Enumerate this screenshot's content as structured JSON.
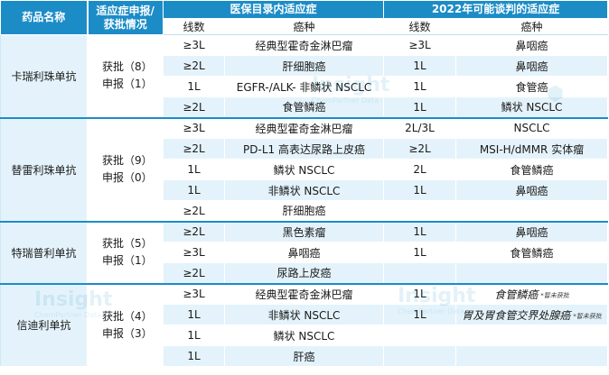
{
  "header": {
    "drug": "药品名称",
    "status": "适应症申报/获批情况",
    "status_line1": "适应症申报/",
    "status_line2": "获批情况",
    "medical_catalog": "医保目录内适应症",
    "negotiation_2022": "2022年可能谈判的适应症",
    "line_col": "线数",
    "cancer_col": "癌种"
  },
  "watermark": {
    "text": "Insight",
    "sub": "ChemPartner Data"
  },
  "drugs": [
    {
      "name": "卡瑞利珠单抗",
      "approved": "获批（8）",
      "filed": "申报（1）",
      "rows": [
        {
          "line": "≥3L",
          "cancer": "经典型霍奇金淋巴瘤",
          "line2": "≥3L",
          "cancer2": "鼻咽癌"
        },
        {
          "line": "≥2L",
          "cancer": "肝细胞癌",
          "line2": "1L",
          "cancer2": "鼻咽癌"
        },
        {
          "line": "1L",
          "cancer": "EGFR-/ALK- 非鳞状 NSCLC",
          "line2": "1L",
          "cancer2": "食管癌"
        },
        {
          "line": "≥2L",
          "cancer": "食管鳞癌",
          "line2": "1L",
          "cancer2": "鳞状 NSCLC"
        }
      ]
    },
    {
      "name": "替雷利珠单抗",
      "approved": "获批（9）",
      "filed": "申报（0）",
      "rows": [
        {
          "line": "≥3L",
          "cancer": "经典型霍奇金淋巴瘤",
          "line2": "2L/3L",
          "cancer2": "NSCLC"
        },
        {
          "line": "≥2L",
          "cancer": "PD-L1 高表达尿路上皮癌",
          "line2": "≥2L",
          "cancer2": "MSI-H/dMMR 实体瘤"
        },
        {
          "line": "1L",
          "cancer": "鳞状 NSCLC",
          "line2": "2L",
          "cancer2": "食管鳞癌"
        },
        {
          "line": "1L",
          "cancer": "非鳞状 NSCLC",
          "line2": "1L",
          "cancer2": "鼻咽癌"
        },
        {
          "line": "≥2L",
          "cancer": "肝细胞癌",
          "line2": "",
          "cancer2": ""
        }
      ]
    },
    {
      "name": "特瑞普利单抗",
      "approved": "获批（5）",
      "filed": "申报（1）",
      "rows": [
        {
          "line": "≥2L",
          "cancer": "黑色素瘤",
          "line2": "1L",
          "cancer2": "鼻咽癌"
        },
        {
          "line": "≥3L",
          "cancer": "鼻咽癌",
          "line2": "1L",
          "cancer2": "食管鳞癌"
        },
        {
          "line": "≥2L",
          "cancer": "尿路上皮癌",
          "line2": "",
          "cancer2": ""
        }
      ]
    },
    {
      "name": "信迪利单抗",
      "approved": "获批（4）",
      "filed": "申报（3）",
      "rows": [
        {
          "line": "≥3L",
          "cancer": "经典型霍奇金淋巴瘤",
          "line2": "1L",
          "cancer2": "食管鳞癌",
          "note2": "*暂未获批"
        },
        {
          "line": "1L",
          "cancer": "非鳞状 NSCLC",
          "line2": "1L",
          "cancer2": "胃及胃食管交界处腺癌",
          "note2": "*暂未获批"
        },
        {
          "line": "1L",
          "cancer": "鳞状 NSCLC",
          "line2": "",
          "cancer2": ""
        },
        {
          "line": "1L",
          "cancer": "肝癌",
          "line2": "",
          "cancer2": ""
        }
      ]
    }
  ]
}
